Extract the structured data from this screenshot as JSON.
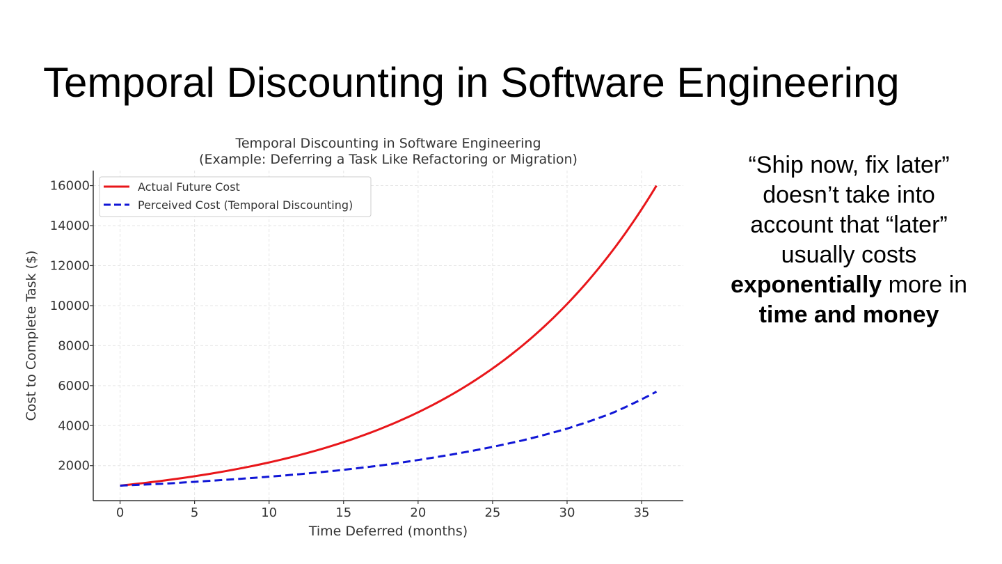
{
  "slide": {
    "title": "Temporal Discounting in Software Engineering",
    "side_text": {
      "line1": "“Ship now, fix later”",
      "line2": "doesn’t take into",
      "line3": "account that “later”",
      "line4": "usually costs",
      "line5_bold": "exponentially",
      "line5_rest": " more in",
      "line6_bold": "time and money"
    }
  },
  "chart_data": {
    "type": "line",
    "title": "Temporal Discounting in Software Engineering",
    "subtitle": "(Example: Deferring a Task Like Refactoring or Migration)",
    "xlabel": "Time Deferred (months)",
    "ylabel": "Cost to Complete Task ($)",
    "xlim": [
      -1.8,
      37.8
    ],
    "ylim": [
      250,
      16750
    ],
    "xticks": [
      0,
      5,
      10,
      15,
      20,
      25,
      30,
      35
    ],
    "yticks": [
      2000,
      4000,
      6000,
      8000,
      10000,
      12000,
      14000,
      16000
    ],
    "grid": true,
    "legend_position": "top-left",
    "series": [
      {
        "name": "Actual Future Cost",
        "color": "#e8161a",
        "style": "solid",
        "x": [
          0,
          3,
          6,
          9,
          12,
          15,
          18,
          21,
          24,
          27,
          30,
          33,
          36
        ],
        "y": [
          1000,
          1260,
          1587,
          2000,
          2520,
          3175,
          4000,
          5040,
          6350,
          8000,
          10079,
          12699,
          16000
        ]
      },
      {
        "name": "Perceived Cost (Temporal Discounting)",
        "color": "#1016d6",
        "style": "dashed",
        "x": [
          0,
          3,
          6,
          9,
          12,
          15,
          18,
          21,
          24,
          27,
          30,
          33,
          36
        ],
        "y": [
          1000,
          1100,
          1240,
          1390,
          1570,
          1790,
          2060,
          2400,
          2790,
          3260,
          3850,
          4620,
          5700
        ]
      }
    ]
  }
}
